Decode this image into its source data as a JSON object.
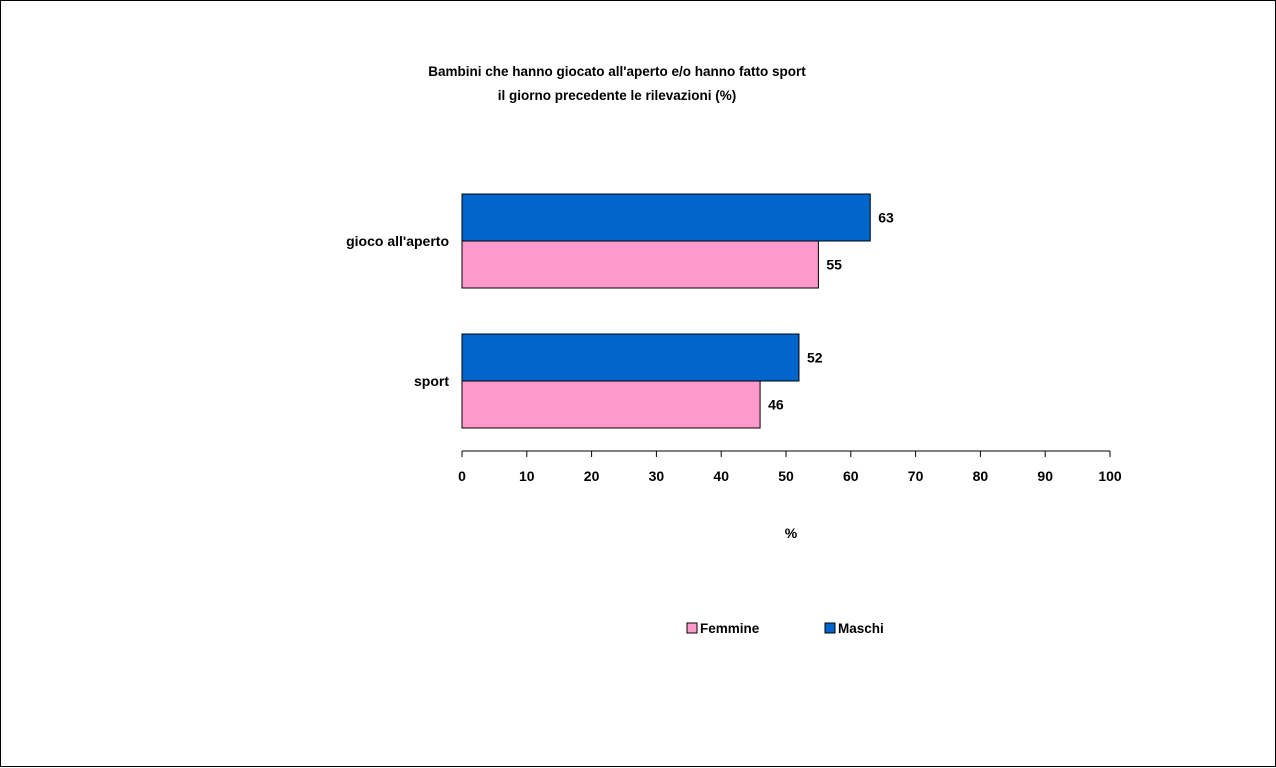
{
  "chart_data": {
    "type": "bar",
    "orientation": "horizontal",
    "title": "Bambini che hanno giocato all'aperto e/o hanno fatto sport",
    "subtitle": "il giorno precedente le rilevazioni (%)",
    "categories": [
      "gioco all'aperto",
      "sport"
    ],
    "series": [
      {
        "name": "Maschi",
        "color": "#0066CC",
        "values": [
          63,
          52
        ]
      },
      {
        "name": "Femmine",
        "color": "#FF99CC",
        "values": [
          55,
          46
        ]
      }
    ],
    "xlabel": "%",
    "ylabel": "",
    "xlim": [
      0,
      100
    ],
    "xticks": [
      "0",
      "10",
      "20",
      "30",
      "40",
      "50",
      "60",
      "70",
      "80",
      "90",
      "100"
    ],
    "grid": false,
    "legend_position": "bottom",
    "legend_order": [
      "Femmine",
      "Maschi"
    ]
  }
}
